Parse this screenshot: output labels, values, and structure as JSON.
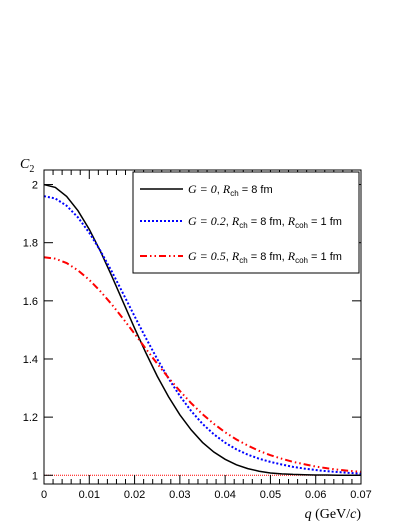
{
  "chart_data": {
    "type": "line",
    "xlabel": {
      "var": "q",
      "unit_pre": " (GeV/",
      "unit_var": "c",
      "unit_post": ")"
    },
    "ylabel": {
      "var": "C",
      "sub": "2"
    },
    "xlim": [
      0,
      0.07
    ],
    "ylim": [
      0.97,
      2.05
    ],
    "xticks": [
      0,
      0.01,
      0.02,
      0.03,
      0.04,
      0.05,
      0.06,
      0.07
    ],
    "xtick_labels": [
      "0",
      "0.01",
      "0.02",
      "0.03",
      "0.04",
      "0.05",
      "0.06",
      "0.07"
    ],
    "yticks": [
      1,
      1.2,
      1.4,
      1.6,
      1.8,
      2
    ],
    "ytick_labels": [
      "1",
      "1.2",
      "1.4",
      "1.6",
      "1.8",
      "2"
    ],
    "legend_position": "top-right",
    "reference_line": {
      "y": 1,
      "color": "#ff0000",
      "style": "dotted"
    },
    "series": [
      {
        "legend": [
          {
            "t": "G = 0",
            "i": true
          },
          {
            "t": ", ",
            "i": false
          },
          {
            "t": "R",
            "i": true
          },
          {
            "t": "ch",
            "sub": true
          },
          {
            "t": " = 8 fm",
            "i": false
          }
        ],
        "color": "#000000",
        "style": "solid",
        "x": [
          0,
          0.0025,
          0.005,
          0.0075,
          0.01,
          0.0125,
          0.015,
          0.0175,
          0.02,
          0.0225,
          0.025,
          0.0275,
          0.03,
          0.0325,
          0.035,
          0.0375,
          0.04,
          0.0425,
          0.045,
          0.0475,
          0.05,
          0.0525,
          0.055,
          0.0575,
          0.06,
          0.0625,
          0.065,
          0.0675,
          0.07
        ],
        "y": [
          2.0,
          1.99,
          1.959,
          1.91,
          1.846,
          1.769,
          1.684,
          1.595,
          1.506,
          1.421,
          1.341,
          1.27,
          1.208,
          1.156,
          1.113,
          1.08,
          1.055,
          1.036,
          1.023,
          1.014,
          1.008,
          1.005,
          1.003,
          1.002,
          1.001,
          1.001,
          1.0,
          1.0,
          1.0
        ]
      },
      {
        "legend": [
          {
            "t": "G = 0.2",
            "i": true
          },
          {
            "t": ", ",
            "i": false
          },
          {
            "t": "R",
            "i": true
          },
          {
            "t": "ch",
            "sub": true
          },
          {
            "t": " = 8 fm, ",
            "i": false
          },
          {
            "t": "R",
            "i": true
          },
          {
            "t": "coh",
            "sub": true
          },
          {
            "t": " = 1 fm",
            "i": false
          }
        ],
        "color": "#0000ff",
        "style": "dotted",
        "x": [
          0,
          0.0025,
          0.005,
          0.0075,
          0.01,
          0.0125,
          0.015,
          0.0175,
          0.02,
          0.0225,
          0.025,
          0.0275,
          0.03,
          0.0325,
          0.035,
          0.0375,
          0.04,
          0.0425,
          0.045,
          0.0475,
          0.05,
          0.0525,
          0.055,
          0.0575,
          0.06,
          0.0625,
          0.065,
          0.0675,
          0.07
        ],
        "y": [
          1.96,
          1.952,
          1.927,
          1.887,
          1.834,
          1.771,
          1.7,
          1.624,
          1.547,
          1.472,
          1.4,
          1.333,
          1.273,
          1.221,
          1.177,
          1.141,
          1.112,
          1.089,
          1.071,
          1.057,
          1.046,
          1.037,
          1.029,
          1.023,
          1.018,
          1.014,
          1.011,
          1.008,
          1.006
        ]
      },
      {
        "legend": [
          {
            "t": "G = 0.5",
            "i": true
          },
          {
            "t": ", ",
            "i": false
          },
          {
            "t": "R",
            "i": true
          },
          {
            "t": "ch",
            "sub": true
          },
          {
            "t": " = 8 fm, ",
            "i": false
          },
          {
            "t": "R",
            "i": true
          },
          {
            "t": "coh",
            "sub": true
          },
          {
            "t": " = 1 fm",
            "i": false
          }
        ],
        "color": "#ff0000",
        "style": "dashdot",
        "x": [
          0,
          0.0025,
          0.005,
          0.0075,
          0.01,
          0.0125,
          0.015,
          0.0175,
          0.02,
          0.0225,
          0.025,
          0.0275,
          0.03,
          0.0325,
          0.035,
          0.0375,
          0.04,
          0.0425,
          0.045,
          0.0475,
          0.05,
          0.0525,
          0.055,
          0.0575,
          0.06,
          0.0625,
          0.065,
          0.0675,
          0.07
        ],
        "y": [
          1.75,
          1.745,
          1.73,
          1.705,
          1.672,
          1.632,
          1.587,
          1.538,
          1.487,
          1.435,
          1.384,
          1.335,
          1.29,
          1.248,
          1.21,
          1.177,
          1.148,
          1.123,
          1.102,
          1.084,
          1.069,
          1.057,
          1.046,
          1.038,
          1.03,
          1.024,
          1.019,
          1.015,
          1.012
        ]
      }
    ]
  }
}
